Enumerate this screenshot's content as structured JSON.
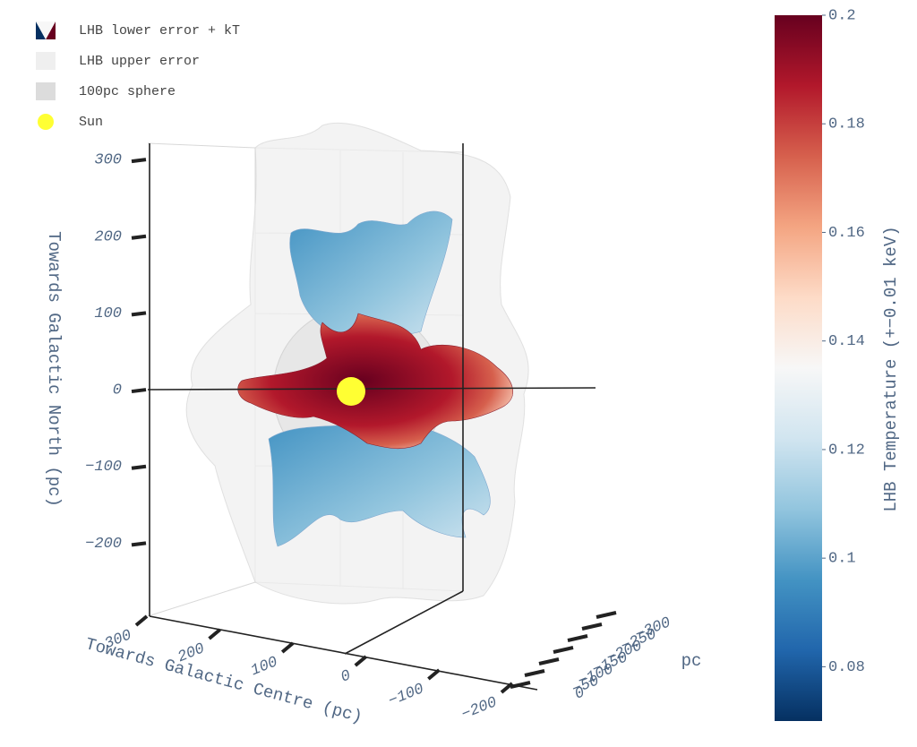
{
  "chart_data": {
    "type": "surface3d",
    "series": [
      {
        "name": "LHB lower error + kT"
      },
      {
        "name": "LHB upper error",
        "color": "#efefef"
      },
      {
        "name": "100pc sphere",
        "color": "#dcdcdc"
      },
      {
        "name": "Sun",
        "color": "#ffff33"
      }
    ],
    "xaxis_title": "Towards Galactic Centre (pc)",
    "yaxis_title": "pc",
    "zaxis_title": "Towards Galactic North (pc)",
    "xlim": [
      -240,
      310
    ],
    "xticks": [
      300,
      200,
      100,
      0,
      {
        "value": -100,
        "label": "−100"
      },
      {
        "value": -200,
        "label": "−200"
      }
    ],
    "ylim": [
      -320,
      10
    ],
    "yticks": [
      {
        "value": -300,
        "label": "−300"
      },
      {
        "value": -250,
        "label": "−250"
      },
      {
        "value": -200,
        "label": "−200"
      },
      {
        "value": -150,
        "label": "−150"
      },
      {
        "value": -100,
        "label": "−100"
      },
      {
        "value": -50,
        "label": "−50"
      },
      0
    ],
    "zlim": [
      -300,
      320
    ],
    "zticks": [
      300,
      200,
      100,
      0,
      {
        "value": -100,
        "label": "−100"
      },
      {
        "value": -200,
        "label": "−200"
      }
    ],
    "colorbar": {
      "title": "LHB Temperature (+−0.01 keV)",
      "lim": [
        0.07,
        0.2
      ],
      "ticks": [
        0.08,
        0.1,
        0.12,
        0.14,
        0.16,
        0.18,
        0.2
      ]
    },
    "colorscale": [
      "#053061",
      "#2166ac",
      "#4393c3",
      "#92c5de",
      "#d1e5f0",
      "#f7f7f7",
      "#fddbc7",
      "#f4a582",
      "#d6604d",
      "#b2182b",
      "#67001f"
    ]
  }
}
